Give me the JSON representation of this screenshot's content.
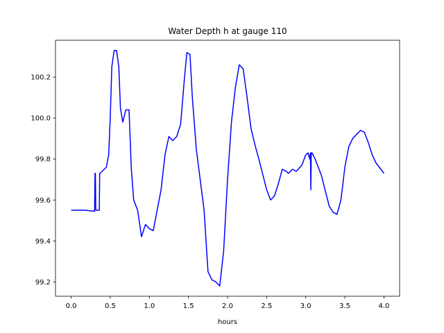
{
  "chart_data": {
    "type": "line",
    "title": "Water Depth h at gauge 110",
    "xlabel": "hours",
    "ylabel": "",
    "xlim": [
      -0.2,
      4.2
    ],
    "ylim": [
      99.13,
      100.38
    ],
    "xticks": [
      0.0,
      0.5,
      1.0,
      1.5,
      2.0,
      2.5,
      3.0,
      3.5,
      4.0
    ],
    "xtick_labels": [
      "0.0",
      "0.5",
      "1.0",
      "1.5",
      "2.0",
      "2.5",
      "3.0",
      "3.5",
      "4.0"
    ],
    "yticks": [
      99.2,
      99.4,
      99.6,
      99.8,
      100.0,
      100.2
    ],
    "ytick_labels": [
      "99.2",
      "99.4",
      "99.6",
      "99.8",
      "100.0",
      "100.2"
    ],
    "grid": false,
    "series": [
      {
        "color": "#0000ff",
        "x": [
          0.0,
          0.18,
          0.3,
          0.305,
          0.31,
          0.315,
          0.32,
          0.35,
          0.36,
          0.365,
          0.37,
          0.45,
          0.48,
          0.5,
          0.52,
          0.55,
          0.58,
          0.61,
          0.63,
          0.66,
          0.7,
          0.74,
          0.77,
          0.8,
          0.85,
          0.9,
          0.95,
          1.0,
          1.05,
          1.1,
          1.15,
          1.2,
          1.25,
          1.3,
          1.35,
          1.4,
          1.45,
          1.48,
          1.52,
          1.55,
          1.6,
          1.65,
          1.7,
          1.75,
          1.8,
          1.85,
          1.9,
          1.95,
          2.0,
          2.05,
          2.1,
          2.15,
          2.2,
          2.25,
          2.3,
          2.35,
          2.4,
          2.5,
          2.55,
          2.6,
          2.65,
          2.7,
          2.75,
          2.78,
          2.83,
          2.88,
          2.95,
          3.0,
          3.03,
          3.05,
          3.06,
          3.065,
          3.07,
          3.075,
          3.08,
          3.12,
          3.2,
          3.3,
          3.35,
          3.4,
          3.45,
          3.5,
          3.55,
          3.6,
          3.7,
          3.75,
          3.8,
          3.85,
          3.9,
          4.0
        ],
        "y": [
          99.55,
          99.55,
          99.545,
          99.73,
          99.73,
          99.55,
          99.55,
          99.55,
          99.55,
          99.73,
          99.73,
          99.76,
          99.82,
          100.0,
          100.25,
          100.33,
          100.33,
          100.25,
          100.05,
          99.98,
          100.04,
          100.04,
          99.75,
          99.6,
          99.55,
          99.42,
          99.48,
          99.46,
          99.45,
          99.55,
          99.65,
          99.82,
          99.91,
          99.89,
          99.91,
          99.97,
          100.2,
          100.32,
          100.31,
          100.1,
          99.85,
          99.7,
          99.55,
          99.25,
          99.21,
          99.2,
          99.18,
          99.35,
          99.7,
          99.98,
          100.15,
          100.26,
          100.24,
          100.1,
          99.95,
          99.87,
          99.8,
          99.65,
          99.6,
          99.62,
          99.68,
          99.75,
          99.74,
          99.73,
          99.75,
          99.74,
          99.77,
          99.82,
          99.83,
          99.8,
          99.83,
          99.65,
          99.83,
          99.83,
          99.83,
          99.8,
          99.72,
          99.57,
          99.54,
          99.53,
          99.6,
          99.76,
          99.86,
          99.9,
          99.94,
          99.93,
          99.88,
          99.82,
          99.78,
          99.73
        ]
      }
    ]
  }
}
